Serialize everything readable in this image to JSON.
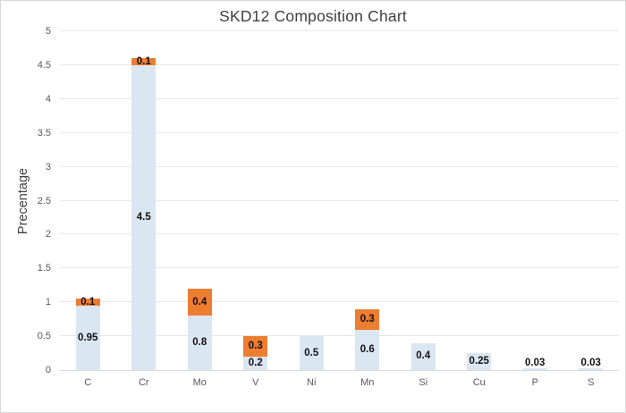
{
  "window": {
    "background": "#ffffff",
    "border_color": "#d9d9d9"
  },
  "chart_data": {
    "type": "bar",
    "stacked": true,
    "title": "SKD12 Composition Chart",
    "xlabel": "",
    "ylabel": "Precentage",
    "ylim": [
      0,
      5
    ],
    "yticks": [
      "0",
      "0.5",
      "1",
      "1.5",
      "2",
      "2.5",
      "3",
      "3.5",
      "4",
      "4.5",
      "5"
    ],
    "grid": true,
    "legend": false,
    "categories": [
      "C",
      "Cr",
      "Mo",
      "V",
      "Ni",
      "Mn",
      "Si",
      "Cu",
      "P",
      "S"
    ],
    "series": [
      {
        "name": "series-1",
        "color": "#dbe6f3",
        "values": [
          0.95,
          4.5,
          0.8,
          0.2,
          0.5,
          0.6,
          0.4,
          0.25,
          0.03,
          0.03
        ],
        "labels": [
          "0.95",
          "4.5",
          "0.8",
          "0.2",
          "0.5",
          "0.6",
          "0.4",
          "0.25",
          "0.03",
          "0.03"
        ]
      },
      {
        "name": "series-2",
        "color": "#ed7d31",
        "values": [
          0.1,
          0.1,
          0.4,
          0.3,
          0,
          0.3,
          0,
          0,
          0,
          0
        ],
        "labels": [
          "0.1",
          "0.1",
          "0.4",
          "0.3",
          "",
          "0.3",
          "",
          "",
          "",
          ""
        ]
      }
    ],
    "colors": {
      "title_text": "#404040",
      "axis_text": "#595959",
      "data_label_text": "#111111",
      "gridline": "#e6e6e6",
      "axis_line": "#d9d9d9"
    }
  }
}
